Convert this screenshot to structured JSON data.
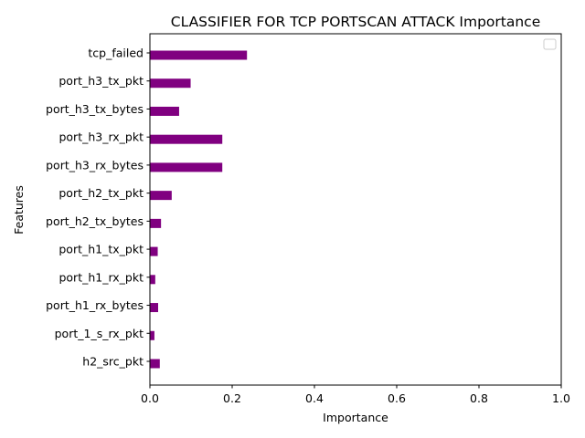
{
  "chart_data": {
    "type": "bar",
    "orientation": "horizontal",
    "title": "CLASSIFIER FOR TCP PORTSCAN ATTACK Importance",
    "xlabel": "Importance",
    "ylabel": "Features",
    "xlim": [
      0,
      1.0
    ],
    "xticks": [
      "0.0",
      "0.2",
      "0.4",
      "0.6",
      "0.8",
      "1.0"
    ],
    "categories": [
      "tcp_failed",
      "port_h3_tx_pkt",
      "port_h3_tx_bytes",
      "port_h3_rx_pkt",
      "port_h3_rx_bytes",
      "port_h2_tx_pkt",
      "port_h2_tx_bytes",
      "port_h1_tx_pkt",
      "port_h1_rx_pkt",
      "port_h1_rx_bytes",
      "port_1_s_rx_pkt",
      "h2_src_pkt"
    ],
    "values": [
      0.236,
      0.099,
      0.071,
      0.176,
      0.176,
      0.053,
      0.027,
      0.019,
      0.013,
      0.02,
      0.011,
      0.024
    ],
    "bar_color": "#800080",
    "grid": false,
    "legend": "top-right (empty)"
  }
}
